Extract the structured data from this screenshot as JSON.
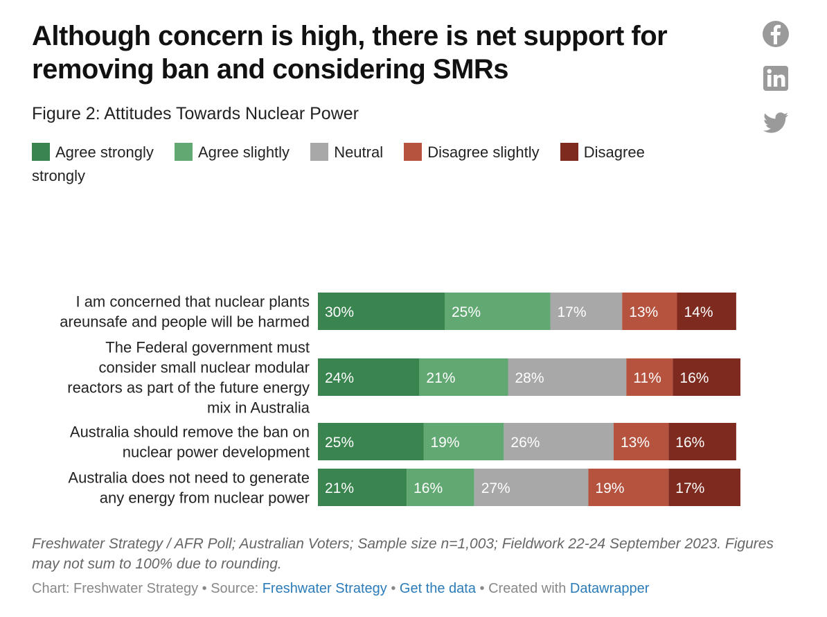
{
  "header": {
    "title": "Although concern is high, there is net support for removing ban and considering SMRs",
    "subtitle": "Figure 2: Attitudes Towards Nuclear Power"
  },
  "share": {
    "facebook": "facebook-icon",
    "linkedin": "linkedin-icon",
    "twitter": "twitter-icon"
  },
  "colors": {
    "agree_strongly": "#3a8450",
    "agree_slightly": "#62a872",
    "neutral": "#a8a8a8",
    "disagree_slightly": "#b5533f",
    "disagree_strongly": "#7e2a1f"
  },
  "chart_data": {
    "type": "bar",
    "orientation": "horizontal",
    "stacked": true,
    "title": "Although concern is high, there is net support for removing ban and considering SMRs",
    "subtitle": "Figure 2: Attitudes Towards Nuclear Power",
    "legend_position": "top",
    "categories": [
      [
        "I am concerned that nuclear plants",
        "areunsafe and people will be harmed"
      ],
      [
        "The Federal government must",
        "consider small nuclear modular",
        "reactors as part of the future energy",
        "mix in Australia"
      ],
      [
        "Australia should remove the ban on",
        "nuclear power development"
      ],
      [
        "Australia does not need to generate",
        "any energy from nuclear power"
      ]
    ],
    "series": [
      {
        "name": "Agree strongly",
        "values": [
          30,
          24,
          25,
          21
        ],
        "labels": [
          "30%",
          "24%",
          "25%",
          "21%"
        ]
      },
      {
        "name": "Agree slightly",
        "values": [
          25,
          21,
          19,
          16
        ],
        "labels": [
          "25%",
          "21%",
          "19%",
          "16%"
        ]
      },
      {
        "name": "Neutral",
        "values": [
          17,
          28,
          26,
          27
        ],
        "labels": [
          "17%",
          "28%",
          "26%",
          "27%"
        ]
      },
      {
        "name": "Disagree slightly",
        "values": [
          13,
          11,
          13,
          19
        ],
        "labels": [
          "13%",
          "11%",
          "13%",
          "19%"
        ]
      },
      {
        "name": "Disagree strongly",
        "values": [
          14,
          16,
          16,
          17
        ],
        "labels": [
          "14%",
          "16%",
          "16%",
          "17%"
        ]
      }
    ]
  },
  "footer": {
    "notes": "Freshwater Strategy / AFR Poll; Australian Voters; Sample size n=1,003; Fieldwork 22-24 September 2023. Figures may not sum to 100% due to rounding.",
    "chart_prefix": "Chart: Freshwater Strategy • Source: ",
    "source_link": "Freshwater Strategy",
    "sep1": " • ",
    "data_link": "Get the data",
    "sep2": " • Created with ",
    "dw_link": "Datawrapper"
  }
}
